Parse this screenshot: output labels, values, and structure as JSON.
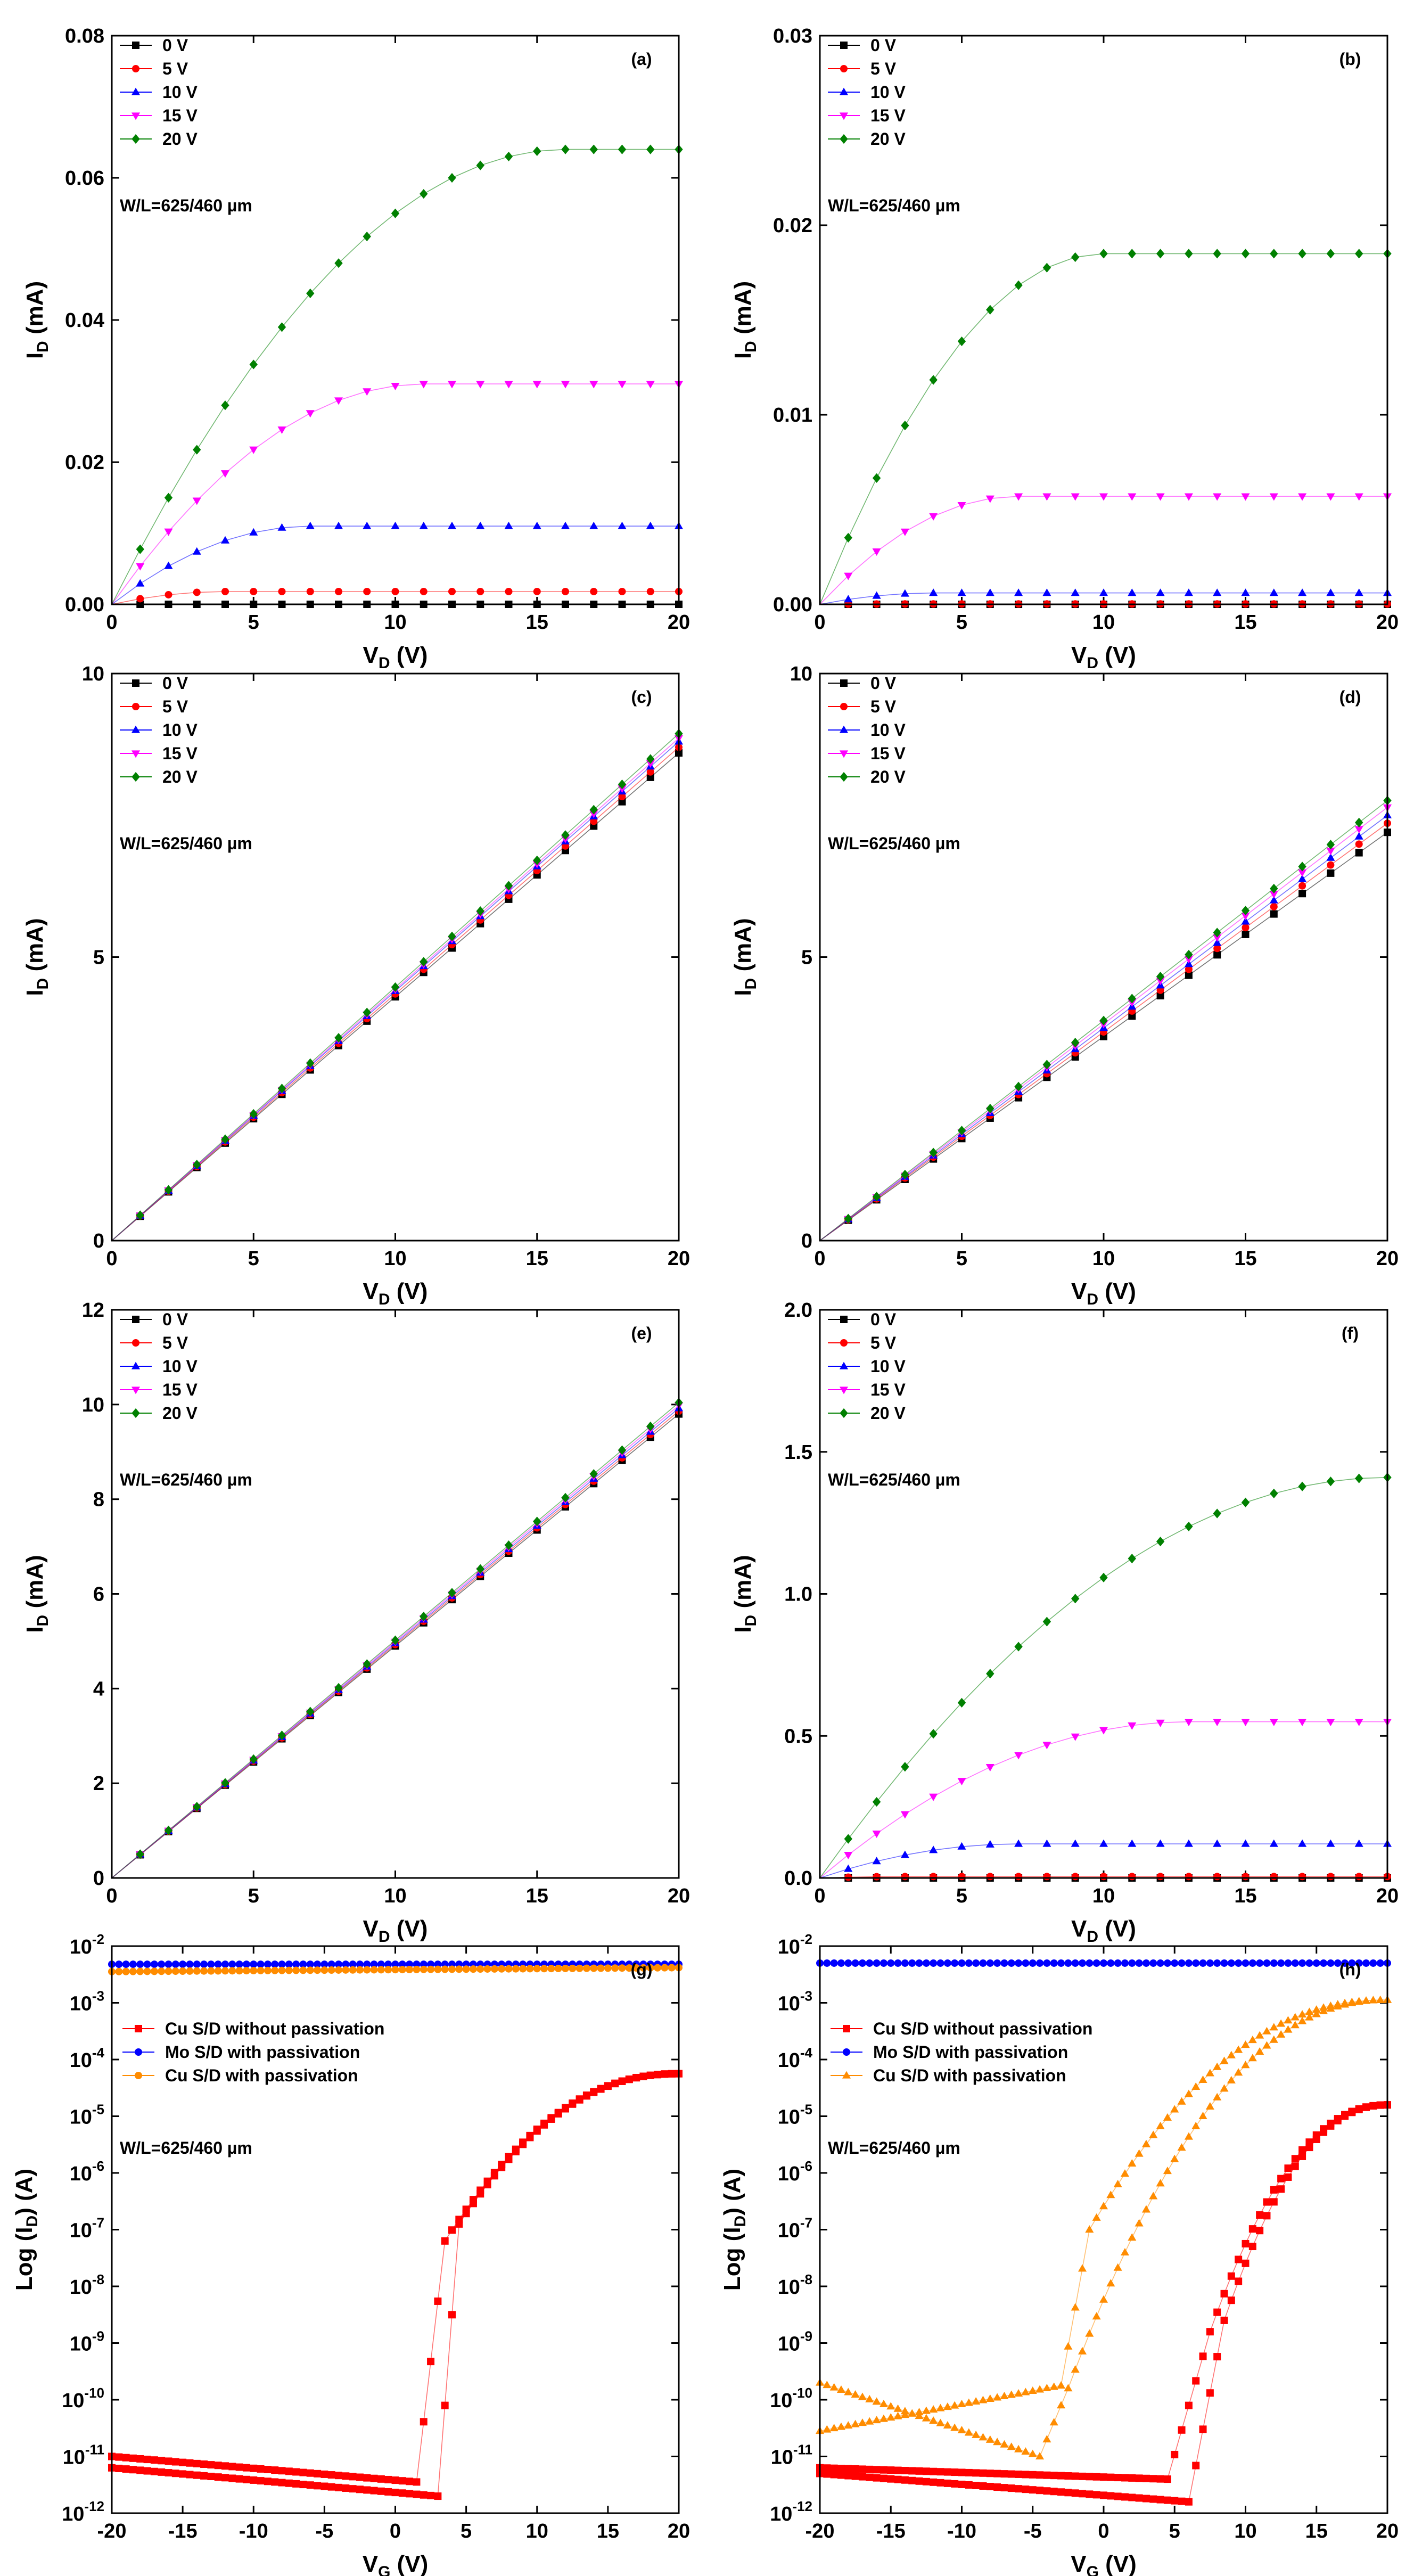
{
  "colors": {
    "black": "#000000",
    "red": "#ff0000",
    "blue": "#0000ff",
    "magenta": "#ff00ff",
    "green": "#008000",
    "orange": "#ff8c00"
  },
  "chart_data": [
    {
      "id": "a",
      "type": "line",
      "title": "",
      "tag": "(a)",
      "note": "W/L=625/460 µm",
      "xlabel": "V",
      "xlabel_sub": "D",
      "xlabel_unit": " (V)",
      "ylabel": "I",
      "ylabel_sub": "D",
      "ylabel_unit": " (mA)",
      "xlim": [
        0,
        20
      ],
      "ylim": [
        0,
        0.08
      ],
      "yscale": "linear",
      "xticks": [
        0,
        5,
        10,
        15,
        20
      ],
      "xtick_labels": [
        "0",
        "5",
        "10",
        "15",
        "20"
      ],
      "yticks": [
        0,
        0.02,
        0.04,
        0.06,
        0.08
      ],
      "ytick_labels": [
        "0.00",
        "0.02",
        "0.04",
        "0.06",
        "0.08"
      ],
      "series": [
        {
          "name": "0 V",
          "color": "#000000",
          "marker": "square",
          "model": "sat",
          "peak": 0,
          "vsat": 5
        },
        {
          "name": "5 V",
          "color": "#ff0000",
          "marker": "circle",
          "model": "sat",
          "peak": 0.0018,
          "vsat": 4
        },
        {
          "name": "10 V",
          "color": "#0000ff",
          "marker": "triangle-up",
          "model": "sat",
          "peak": 0.011,
          "vsat": 7
        },
        {
          "name": "15 V",
          "color": "#ff00ff",
          "marker": "triangle-down",
          "model": "sat",
          "peak": 0.031,
          "vsat": 11
        },
        {
          "name": "20 V",
          "color": "#008000",
          "marker": "diamond",
          "model": "sat",
          "peak": 0.064,
          "vsat": 16
        }
      ]
    },
    {
      "id": "b",
      "type": "line",
      "title": "",
      "tag": "(b)",
      "note": "W/L=625/460 µm",
      "xlabel": "V",
      "xlabel_sub": "D",
      "xlabel_unit": " (V)",
      "ylabel": "I",
      "ylabel_sub": "D",
      "ylabel_unit": " (mA)",
      "xlim": [
        0,
        20
      ],
      "ylim": [
        0,
        0.03
      ],
      "yscale": "linear",
      "xticks": [
        0,
        5,
        10,
        15,
        20
      ],
      "xtick_labels": [
        "0",
        "5",
        "10",
        "15",
        "20"
      ],
      "yticks": [
        0,
        0.01,
        0.02,
        0.03
      ],
      "ytick_labels": [
        "0.00",
        "0.01",
        "0.02",
        "0.03"
      ],
      "series": [
        {
          "name": "0 V",
          "color": "#000000",
          "marker": "square",
          "model": "sat",
          "peak": 0,
          "vsat": 5
        },
        {
          "name": "5 V",
          "color": "#ff0000",
          "marker": "circle",
          "model": "sat",
          "peak": 2e-05,
          "vsat": 3
        },
        {
          "name": "10 V",
          "color": "#0000ff",
          "marker": "triangle-up",
          "model": "sat",
          "peak": 0.0006,
          "vsat": 4
        },
        {
          "name": "15 V",
          "color": "#ff00ff",
          "marker": "triangle-down",
          "model": "sat",
          "peak": 0.0057,
          "vsat": 7
        },
        {
          "name": "20 V",
          "color": "#008000",
          "marker": "diamond",
          "model": "sat",
          "peak": 0.0185,
          "vsat": 10
        }
      ]
    },
    {
      "id": "c",
      "type": "line",
      "title": "",
      "tag": "(c)",
      "note": "W/L=625/460 µm",
      "xlabel": "V",
      "xlabel_sub": "D",
      "xlabel_unit": " (V)",
      "ylabel": "I",
      "ylabel_sub": "D",
      "ylabel_unit": " (mA)",
      "xlim": [
        0,
        20
      ],
      "ylim": [
        0,
        10
      ],
      "yscale": "linear",
      "xticks": [
        0,
        5,
        10,
        15,
        20
      ],
      "xtick_labels": [
        "0",
        "5",
        "10",
        "15",
        "20"
      ],
      "yticks": [
        0,
        5,
        10
      ],
      "ytick_labels": [
        "0",
        "5",
        "10"
      ],
      "series": [
        {
          "name": "0 V",
          "color": "#000000",
          "marker": "square",
          "model": "lin",
          "slope": 0.43
        },
        {
          "name": "5 V",
          "color": "#ff0000",
          "marker": "circle",
          "model": "lin",
          "slope": 0.435
        },
        {
          "name": "10 V",
          "color": "#0000ff",
          "marker": "triangle-up",
          "model": "lin",
          "slope": 0.44
        },
        {
          "name": "15 V",
          "color": "#ff00ff",
          "marker": "triangle-down",
          "model": "lin",
          "slope": 0.443
        },
        {
          "name": "20 V",
          "color": "#008000",
          "marker": "diamond",
          "model": "lin",
          "slope": 0.447
        }
      ]
    },
    {
      "id": "d",
      "type": "line",
      "title": "",
      "tag": "(d)",
      "note": "W/L=625/460 µm",
      "xlabel": "V",
      "xlabel_sub": "D",
      "xlabel_unit": " (V)",
      "ylabel": "I",
      "ylabel_sub": "D",
      "ylabel_unit": " (mA)",
      "xlim": [
        0,
        20
      ],
      "ylim": [
        0,
        10
      ],
      "yscale": "linear",
      "xticks": [
        0,
        5,
        10,
        15,
        20
      ],
      "xtick_labels": [
        "0",
        "5",
        "10",
        "15",
        "20"
      ],
      "yticks": [
        0,
        5,
        10
      ],
      "ytick_labels": [
        "0",
        "5",
        "10"
      ],
      "series": [
        {
          "name": "0 V",
          "color": "#000000",
          "marker": "square",
          "model": "lin",
          "slope": 0.36
        },
        {
          "name": "5 V",
          "color": "#ff0000",
          "marker": "circle",
          "model": "lin",
          "slope": 0.368
        },
        {
          "name": "10 V",
          "color": "#0000ff",
          "marker": "triangle-up",
          "model": "lin",
          "slope": 0.375
        },
        {
          "name": "15 V",
          "color": "#ff00ff",
          "marker": "triangle-down",
          "model": "lin",
          "slope": 0.382
        },
        {
          "name": "20 V",
          "color": "#008000",
          "marker": "diamond",
          "model": "lin",
          "slope": 0.388
        }
      ]
    },
    {
      "id": "e",
      "type": "line",
      "title": "",
      "tag": "(e)",
      "note": "W/L=625/460 µm",
      "xlabel": "V",
      "xlabel_sub": "D",
      "xlabel_unit": " (V)",
      "ylabel": "I",
      "ylabel_sub": "D",
      "ylabel_unit": " (mA)",
      "xlim": [
        0,
        20
      ],
      "ylim": [
        0,
        12
      ],
      "yscale": "linear",
      "xticks": [
        0,
        5,
        10,
        15,
        20
      ],
      "xtick_labels": [
        "0",
        "5",
        "10",
        "15",
        "20"
      ],
      "yticks": [
        0,
        2,
        4,
        6,
        8,
        10,
        12
      ],
      "ytick_labels": [
        "0",
        "2",
        "4",
        "6",
        "8",
        "10",
        "12"
      ],
      "series": [
        {
          "name": "0 V",
          "color": "#000000",
          "marker": "square",
          "model": "lin",
          "slope": 0.49
        },
        {
          "name": "5 V",
          "color": "#ff0000",
          "marker": "circle",
          "model": "lin",
          "slope": 0.493
        },
        {
          "name": "10 V",
          "color": "#0000ff",
          "marker": "triangle-up",
          "model": "lin",
          "slope": 0.496
        },
        {
          "name": "15 V",
          "color": "#ff00ff",
          "marker": "triangle-down",
          "model": "lin",
          "slope": 0.499
        },
        {
          "name": "20 V",
          "color": "#008000",
          "marker": "diamond",
          "model": "lin",
          "slope": 0.502
        }
      ]
    },
    {
      "id": "f",
      "type": "line",
      "title": "",
      "tag": "(f)",
      "note": "W/L=625/460 µm",
      "xlabel": "V",
      "xlabel_sub": "D",
      "xlabel_unit": " (V)",
      "ylabel": "I",
      "ylabel_sub": "D",
      "ylabel_unit": " (mA)",
      "xlim": [
        0,
        20
      ],
      "ylim": [
        0,
        2.0
      ],
      "yscale": "linear",
      "xticks": [
        0,
        5,
        10,
        15,
        20
      ],
      "xtick_labels": [
        "0",
        "5",
        "10",
        "15",
        "20"
      ],
      "yticks": [
        0,
        0.5,
        1.0,
        1.5,
        2.0
      ],
      "ytick_labels": [
        "0.0",
        "0.5",
        "1.0",
        "1.5",
        "2.0"
      ],
      "series": [
        {
          "name": "0 V",
          "color": "#000000",
          "marker": "square",
          "model": "sat",
          "peak": 0,
          "vsat": 5
        },
        {
          "name": "5 V",
          "color": "#ff0000",
          "marker": "circle",
          "model": "sat",
          "peak": 0.005,
          "vsat": 3
        },
        {
          "name": "10 V",
          "color": "#0000ff",
          "marker": "triangle-up",
          "model": "sat",
          "peak": 0.12,
          "vsat": 7
        },
        {
          "name": "15 V",
          "color": "#ff00ff",
          "marker": "triangle-down",
          "model": "sat",
          "peak": 0.55,
          "vsat": 13
        },
        {
          "name": "20 V",
          "color": "#008000",
          "marker": "diamond",
          "model": "sat",
          "peak": 1.41,
          "vsat": 20
        }
      ]
    },
    {
      "id": "g",
      "type": "scatter",
      "title": "",
      "tag": "(g)",
      "note": "W/L=625/460 µm",
      "xlabel": "V",
      "xlabel_sub": "G",
      "xlabel_unit": " (V)",
      "ylabel": "Log (I",
      "ylabel_sub": "D",
      "ylabel_unit": ") (A)",
      "xlim": [
        -20,
        20
      ],
      "ylim": [
        -12,
        -2
      ],
      "yscale": "log",
      "xticks": [
        -20,
        -15,
        -10,
        -5,
        0,
        5,
        10,
        15,
        20
      ],
      "xtick_labels": [
        "-20",
        "-15",
        "-10",
        "-5",
        "0",
        "5",
        "10",
        "15",
        "20"
      ],
      "yticks": [
        -12,
        -11,
        -10,
        -9,
        -8,
        -7,
        -6,
        -5,
        -4,
        -3,
        -2
      ],
      "ytick_base": [
        "10",
        "10",
        "10",
        "10",
        "10",
        "10",
        "10",
        "10",
        "10",
        "10",
        "10"
      ],
      "ytick_exp": [
        "-12",
        "-11",
        "-10",
        "-9",
        "-8",
        "-7",
        "-6",
        "-5",
        "-4",
        "-3",
        "-2"
      ],
      "series": [
        {
          "name": "Cu S/D without passivation",
          "color": "#ff0000",
          "marker": "square",
          "model": "transfer",
          "fwd": {
            "off_a": -11.0,
            "off_b": -11.45,
            "vth": 1.5,
            "ss": 0.7,
            "peak": -7.2,
            "kink": 3.5,
            "ton": 6.5,
            "on_end": -4.25
          },
          "rev": {
            "off_a": -11.2,
            "off_b": -11.7,
            "vth": 3.0,
            "ss": 0.7,
            "peak": -6.9,
            "kink": 4.5,
            "ton": 6.5,
            "on_end": -4.25
          }
        },
        {
          "name": "Mo S/D with passivation",
          "color": "#0000ff",
          "marker": "circle",
          "model": "flat",
          "level": -2.32
        },
        {
          "name": "Cu S/D with passivation",
          "color": "#ff8c00",
          "marker": "circle",
          "model": "flat",
          "level": -2.45,
          "level_end": -2.38
        }
      ]
    },
    {
      "id": "h",
      "type": "scatter",
      "title": "",
      "tag": "(h)",
      "note": "W/L=625/460 µm",
      "xlabel": "V",
      "xlabel_sub": "G",
      "xlabel_unit": " (V)",
      "ylabel": "Log (I",
      "ylabel_sub": "D",
      "ylabel_unit": ") (A)",
      "xlim": [
        -20,
        20
      ],
      "ylim": [
        -12,
        -2
      ],
      "yscale": "log",
      "xticks": [
        -20,
        -15,
        -10,
        -5,
        0,
        5,
        10,
        15,
        20
      ],
      "xtick_labels": [
        "-20",
        "-15",
        "-10",
        "-5",
        "0",
        "5",
        "10",
        "15",
        "20"
      ],
      "yticks": [
        -12,
        -11,
        -10,
        -9,
        -8,
        -7,
        -6,
        -5,
        -4,
        -3,
        -2
      ],
      "ytick_base": [
        "10",
        "10",
        "10",
        "10",
        "10",
        "10",
        "10",
        "10",
        "10",
        "10",
        "10"
      ],
      "ytick_exp": [
        "-12",
        "-11",
        "-10",
        "-9",
        "-8",
        "-7",
        "-6",
        "-5",
        "-4",
        "-3",
        "-2"
      ],
      "series": [
        {
          "name": "Cu S/D without passivation",
          "color": "#ff0000",
          "marker": "square",
          "model": "transfer",
          "fwd": {
            "off_a": -11.2,
            "off_b": -11.4,
            "vth": 4.5,
            "ss": 0.9,
            "peak": -8.8,
            "kink": 7.5,
            "ton": 9.0,
            "on_end": -4.8
          },
          "rev": {
            "off_a": -11.3,
            "off_b": -11.8,
            "vth": 6.0,
            "ss": 0.9,
            "peak": -8.6,
            "kink": 8.5,
            "ton": 9.0,
            "on_end": -4.8
          }
        },
        {
          "name": "Mo S/D with passivation",
          "color": "#0000ff",
          "marker": "circle",
          "model": "flat",
          "level": -2.3
        },
        {
          "name": "Cu S/D with passivation",
          "color": "#ff8c00",
          "marker": "triangle-up",
          "model": "transfer",
          "fwd": {
            "off_a": -10.55,
            "off_b": -9.75,
            "vth": -3.0,
            "ss": 0.25,
            "peak": -7.0,
            "kink": -1.0,
            "ton": 8.0,
            "on_end": -2.95
          },
          "rev": {
            "off_a": -9.7,
            "off_b": -11.0,
            "vth": -4.5,
            "ss": 0.6,
            "peak": -9.8,
            "kink": -2.5,
            "ton": 8.0,
            "on_end": -2.95
          }
        }
      ]
    }
  ]
}
